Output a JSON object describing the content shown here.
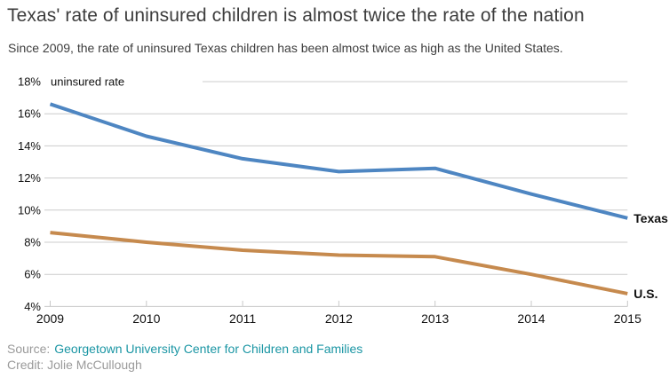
{
  "header": {
    "title": "Texas' rate of uninsured children is almost twice the rate of the nation",
    "subtitle": "Since 2009, the rate of uninsured Texas children has been almost twice as high as the United States."
  },
  "chart_data": {
    "type": "line",
    "x": [
      2009,
      2010,
      2011,
      2012,
      2013,
      2014,
      2015
    ],
    "x_tick_labels": [
      "2009",
      "2010",
      "2011",
      "2012",
      "2013",
      "2014",
      "2015"
    ],
    "series": [
      {
        "name": "Texas",
        "values": [
          16.6,
          14.6,
          13.2,
          12.4,
          12.6,
          11.0,
          9.5
        ],
        "color": "#4e86c2"
      },
      {
        "name": "U.S.",
        "values": [
          8.6,
          8.0,
          7.5,
          7.2,
          7.1,
          6.0,
          4.8
        ],
        "color": "#c68a4e"
      }
    ],
    "y_axis": {
      "label": "uninsured rate",
      "ticks": [
        18,
        16,
        14,
        12,
        10,
        8,
        6,
        4
      ],
      "tick_labels": [
        "18%",
        "16%",
        "14%",
        "12%",
        "10%",
        "8%",
        "6%",
        "4%"
      ],
      "min": 4,
      "max": 18
    },
    "grid": "horizontal",
    "legend_position": "right-end-labels"
  },
  "footer": {
    "source_label": "Source:",
    "source_link": "Georgetown University Center for Children and Families",
    "credit": "Credit: Jolie McCullough"
  },
  "colors": {
    "texas_line": "#4e86c2",
    "us_line": "#c68a4e",
    "grid": "#cccccc",
    "axis": "#c8c8c8",
    "tick_text": "#111111",
    "series_label_text": "#111111",
    "link": "#1b96a4",
    "muted_text": "#9a9a9a"
  }
}
